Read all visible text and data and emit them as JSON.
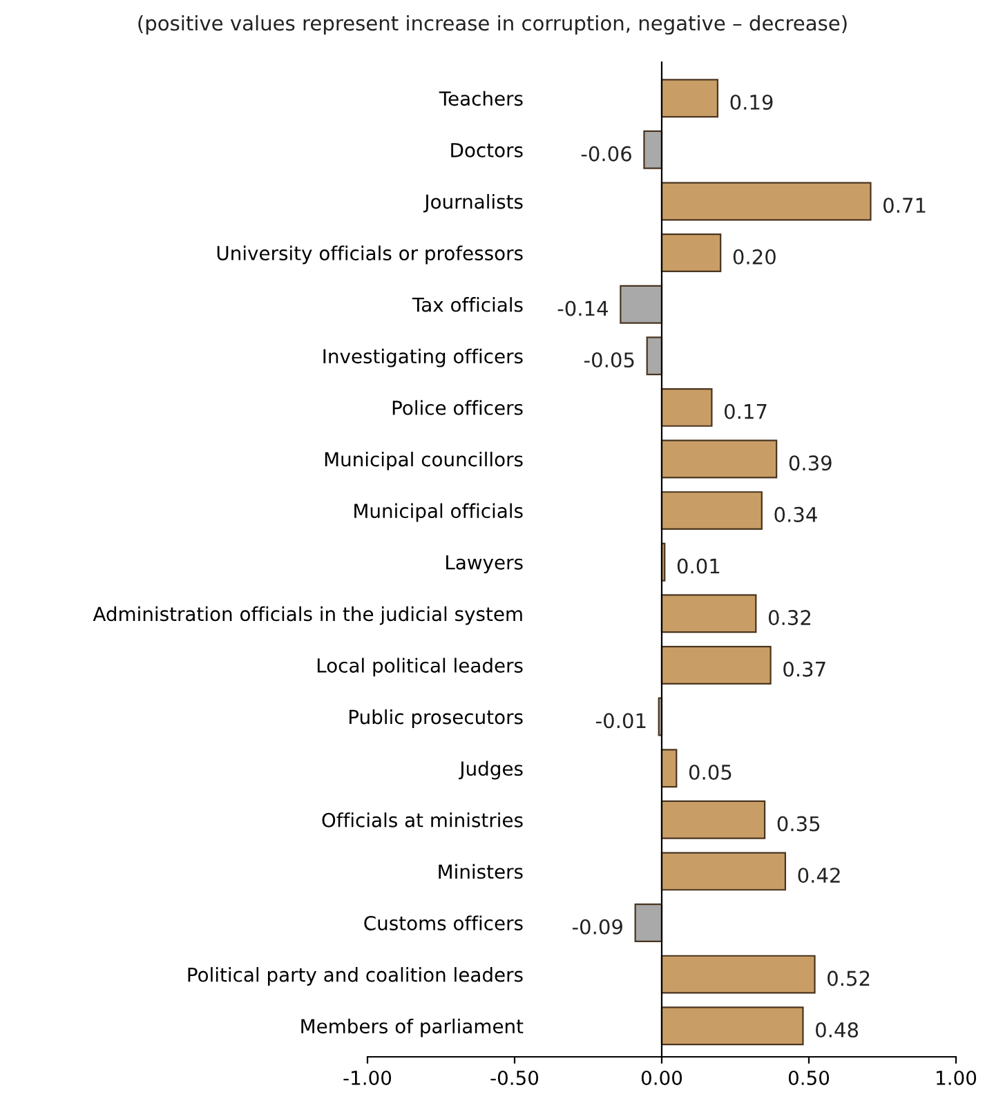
{
  "chart_data": {
    "type": "bar",
    "orientation": "horizontal",
    "subtitle": "(positive values represent increase in corruption, negative – decrease)",
    "categories": [
      "Teachers",
      "Doctors",
      "Journalists",
      "University officials or professors",
      "Tax officials",
      "Investigating officers",
      "Police officers",
      "Municipal councillors",
      "Municipal officials",
      "Lawyers",
      "Administration officials in the judicial system",
      "Local political leaders",
      "Public prosecutors",
      "Judges",
      "Officials at ministries",
      "Ministers",
      "Customs officers",
      "Political party and coalition leaders",
      "Members of parliament"
    ],
    "values": [
      0.19,
      -0.06,
      0.71,
      0.2,
      -0.14,
      -0.05,
      0.17,
      0.39,
      0.34,
      0.01,
      0.32,
      0.37,
      -0.01,
      0.05,
      0.35,
      0.42,
      -0.09,
      0.52,
      0.48
    ],
    "value_labels": [
      "0.19",
      "-0.06",
      "0.71",
      "0.20",
      "-0.14",
      "-0.05",
      "0.17",
      "0.39",
      "0.34",
      "0.01",
      "0.32",
      "0.37",
      "-0.01",
      "0.05",
      "0.35",
      "0.42",
      "-0.09",
      "0.52",
      "0.48"
    ],
    "colors": [
      "#c99e66",
      "#a9a9a9",
      "#c99e66",
      "#c99e66",
      "#a9a9a9",
      "#a9a9a9",
      "#c99e66",
      "#c99e66",
      "#c99e66",
      "#c99e66",
      "#c99e66",
      "#c99e66",
      "#a9a9a9",
      "#c99e66",
      "#c99e66",
      "#c99e66",
      "#a9a9a9",
      "#c99e66",
      "#c99e66"
    ],
    "xlim": [
      -1,
      1
    ],
    "xticks": [
      {
        "value": -1,
        "label": "-1.00"
      },
      {
        "value": -0.5,
        "label": "-0.50"
      },
      {
        "value": 0,
        "label": "0.00"
      },
      {
        "value": 0.5,
        "label": "0.50"
      },
      {
        "value": 1,
        "label": "1.00"
      }
    ],
    "legend": false
  }
}
